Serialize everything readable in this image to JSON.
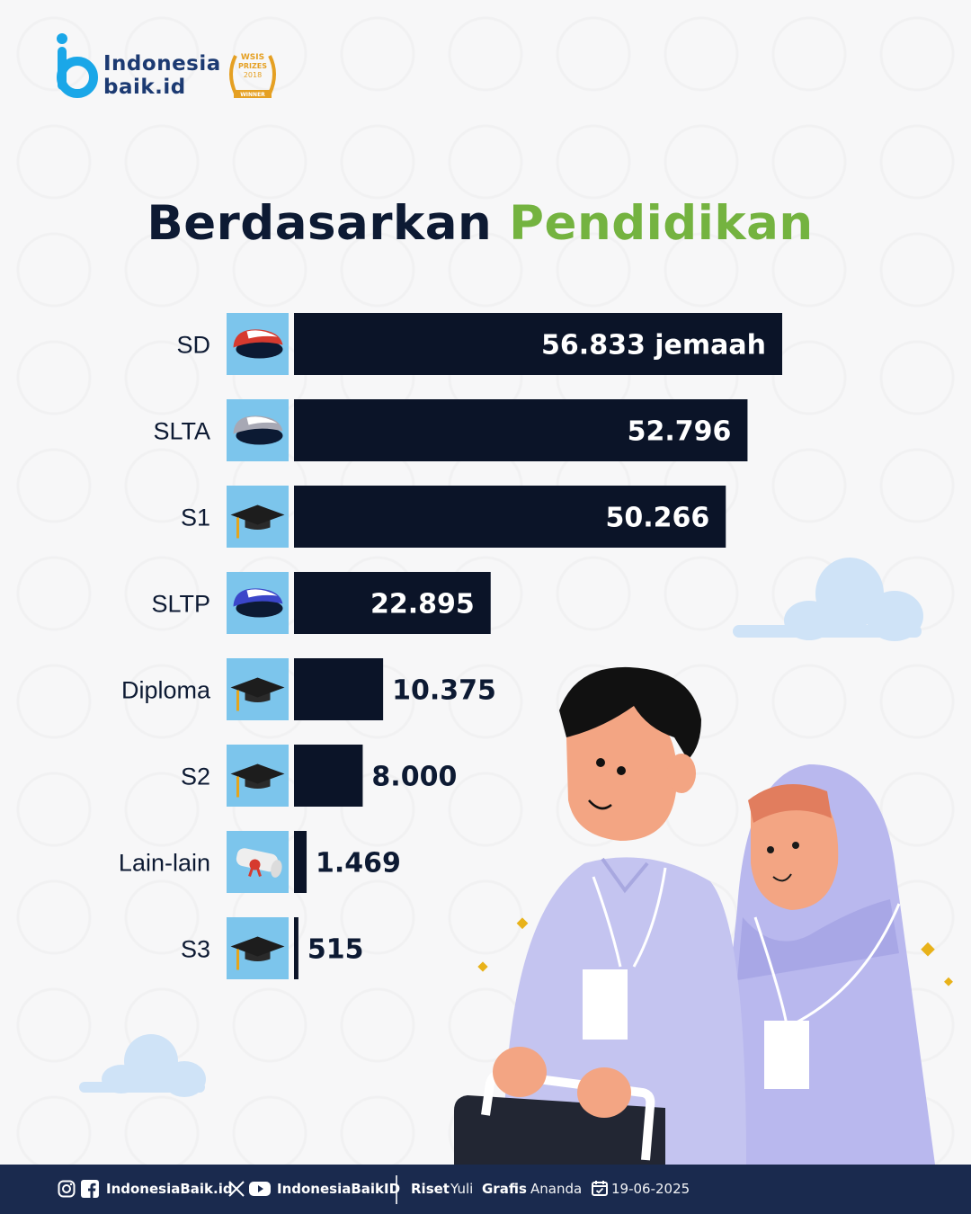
{
  "brand": {
    "line1": "Indonesia",
    "line2": "baik.id"
  },
  "award": {
    "line1": "WSIS",
    "line2": "PRIZES",
    "line3": "2018",
    "line4": "WINNER"
  },
  "title": {
    "part1": "Berdasarkan",
    "part2": "Pendidikan"
  },
  "chart_data": {
    "type": "bar",
    "orientation": "horizontal",
    "categories": [
      "SD",
      "SLTA",
      "S1",
      "SLTP",
      "Diploma",
      "S2",
      "Lain-lain",
      "S3"
    ],
    "values": [
      56833,
      52796,
      50266,
      22895,
      10375,
      8000,
      1469,
      515
    ],
    "value_labels": [
      "56.833  jemaah",
      "52.796",
      "50.266",
      "22.895",
      "10.375",
      "8.000",
      "1.469",
      "515"
    ],
    "icons": [
      "red-school-cap-icon",
      "gray-school-cap-icon",
      "graduation-cap-icon",
      "blue-school-cap-icon",
      "graduation-cap-icon",
      "graduation-cap-icon",
      "diploma-scroll-icon",
      "graduation-cap-icon"
    ],
    "unit": "jemaah",
    "bar_color": "#0b1428",
    "icon_bg_color": "#7cc5ec",
    "grid": false,
    "legend": "none"
  },
  "footer": {
    "social1": "IndonesiaBaik.id",
    "social2": "IndonesiaBaikID",
    "riset_label": "Riset",
    "riset_name": "Yuli",
    "grafis_label": "Grafis",
    "grafis_name": "Ananda",
    "date": "19-06-2025"
  },
  "colors": {
    "navy": "#1a2a4e",
    "green": "#74b340",
    "title": "#0d1a33"
  }
}
